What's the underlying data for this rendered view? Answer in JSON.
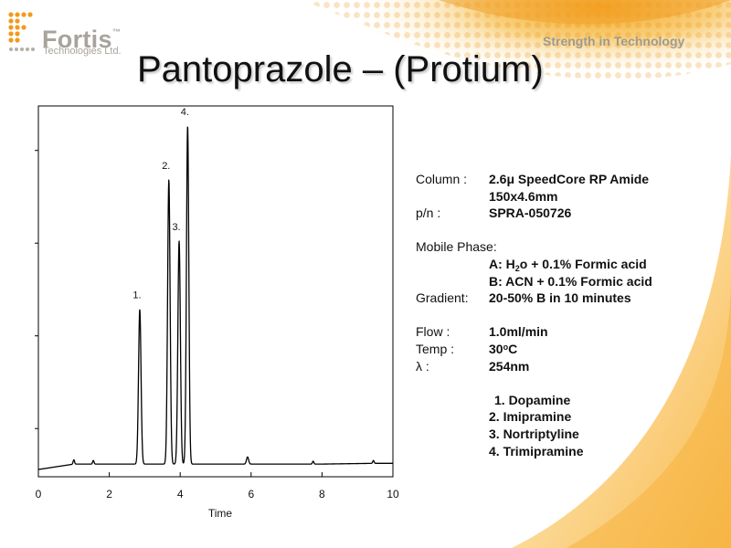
{
  "branding": {
    "logo_name": "Fortis",
    "logo_tm": "™",
    "logo_sub": "Technologies Ltd.",
    "tagline": "Strength in Technology",
    "accent_color": "#f5a623"
  },
  "slide": {
    "title": "Pantoprazole – (Protium)"
  },
  "conditions": {
    "column_label": "Column :",
    "column_value_pre": "2.6",
    "column_value_mu": "μ",
    "column_value_post": " SpeedCore RP Amide",
    "column_dims": "150x4.6mm",
    "pn_label": "p/n :",
    "pn_value": "SPRA-050726",
    "mobile_phase_label": "Mobile Phase:",
    "mp_a_pre": "A: H",
    "mp_a_sub": "2",
    "mp_a_post": "o + 0.1% Formic acid",
    "mp_b": "B: ACN + 0.1% Formic acid",
    "gradient_label": "Gradient:",
    "gradient_value": "20-50% B in 10 minutes",
    "flow_label": "Flow :",
    "flow_value": "1.0ml/min",
    "temp_label": "Temp :",
    "temp_value_pre": "30",
    "temp_value_deg": "o",
    "temp_value_post": "C",
    "lambda_label": "λ :",
    "lambda_value": "254nm"
  },
  "compounds": [
    "1. Dopamine",
    "2. Imipramine",
    "3. Nortriptyline",
    "4. Trimipramine"
  ],
  "chart_data": {
    "type": "line",
    "title": "",
    "xlabel": "Time",
    "ylabel": "",
    "xlim": [
      0,
      10
    ],
    "ylim": [
      0,
      1
    ],
    "x_ticks": [
      "0",
      "2",
      "4",
      "6",
      "8",
      "10"
    ],
    "y_ticks_labeled": false,
    "line_color": "#000000",
    "peaks": [
      {
        "label": "1.",
        "time": 2.86,
        "height": 0.45
      },
      {
        "label": "2.",
        "time": 3.68,
        "height": 0.81
      },
      {
        "label": "3.",
        "time": 3.97,
        "height": 0.64
      },
      {
        "label": "4.",
        "time": 4.21,
        "height": 0.96
      }
    ],
    "baseline": [
      [
        0.0,
        0.005
      ],
      [
        1.0,
        0.02
      ],
      [
        2.0,
        0.02
      ],
      [
        2.75,
        0.02
      ],
      [
        4.8,
        0.02
      ],
      [
        5.9,
        0.02
      ],
      [
        7.0,
        0.02
      ],
      [
        8.0,
        0.02
      ],
      [
        9.4,
        0.022
      ],
      [
        10.0,
        0.022
      ]
    ]
  }
}
